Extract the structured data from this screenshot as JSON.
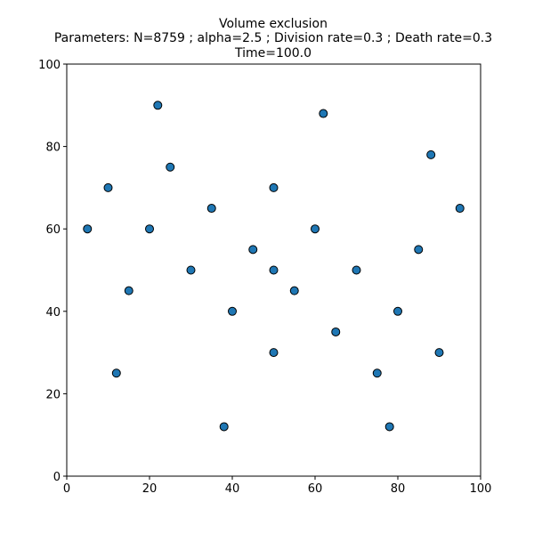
{
  "chart_data": {
    "type": "scatter",
    "title": "Volume exclusion",
    "subtitle": "Parameters: N=8759 ; alpha=2.5 ; Division rate=0.3 ; Death rate=0.3",
    "time_label": "Time=100.0",
    "xlabel": "",
    "ylabel": "",
    "xlim": [
      0,
      100
    ],
    "ylim": [
      0,
      100
    ],
    "x_ticks": [
      "0",
      "20",
      "40",
      "60",
      "80",
      "100"
    ],
    "y_ticks": [
      "0",
      "20",
      "40",
      "60",
      "80",
      "100"
    ],
    "grid": false,
    "marker_fill": "#1f77b4",
    "marker_edge": "#000000",
    "series": [
      {
        "points": [
          [
            50,
            50
          ],
          [
            45,
            55
          ],
          [
            55,
            45
          ],
          [
            60,
            60
          ],
          [
            40,
            40
          ],
          [
            35,
            65
          ],
          [
            65,
            35
          ],
          [
            30,
            50
          ],
          [
            70,
            50
          ],
          [
            50,
            30
          ],
          [
            50,
            70
          ],
          [
            25,
            75
          ],
          [
            75,
            25
          ],
          [
            20,
            60
          ],
          [
            80,
            40
          ],
          [
            15,
            45
          ],
          [
            85,
            55
          ],
          [
            10,
            70
          ],
          [
            90,
            30
          ],
          [
            5,
            60
          ],
          [
            95,
            65
          ],
          [
            12,
            25
          ],
          [
            88,
            78
          ],
          [
            22,
            90
          ],
          [
            78,
            12
          ],
          [
            62,
            88
          ],
          [
            38,
            12
          ]
        ]
      }
    ]
  }
}
